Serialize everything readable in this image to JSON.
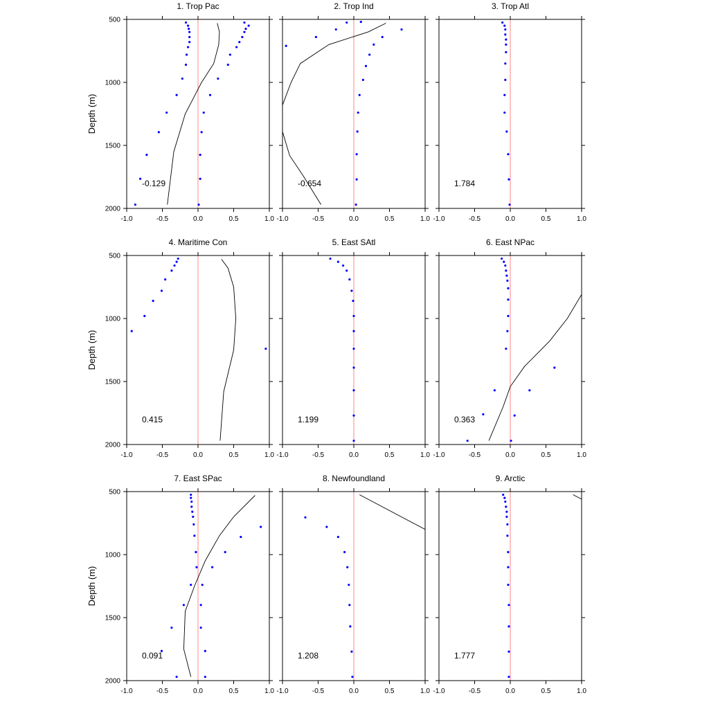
{
  "chart_data": {
    "type": "scatter",
    "shared": {
      "ylabel": "Depth (m)",
      "xlim": [
        -1.0,
        1.0
      ],
      "ylim": [
        500,
        2000
      ],
      "y_inverted": true,
      "xticks": [
        "-1.0",
        "-0.5",
        "0.0",
        "0.5",
        "1.0"
      ],
      "yticks": [
        "500",
        "1000",
        "1500",
        "2000"
      ],
      "zero_line_color": "#ff9999",
      "dot_color": "#0000ff",
      "line_color": "#000000",
      "grid": false
    },
    "panels": [
      {
        "title": "1. Trop Pac",
        "value_label": "-0.129",
        "series": [
          {
            "type": "scatter",
            "points": [
              [
                -0.17,
                525
              ],
              [
                -0.14,
                550
              ],
              [
                -0.13,
                575
              ],
              [
                -0.12,
                600
              ],
              [
                -0.12,
                640
              ],
              [
                -0.12,
                680
              ],
              [
                -0.14,
                720
              ],
              [
                -0.16,
                780
              ],
              [
                -0.17,
                860
              ],
              [
                -0.22,
                970
              ],
              [
                -0.3,
                1100
              ],
              [
                -0.44,
                1240
              ],
              [
                -0.55,
                1395
              ],
              [
                -0.72,
                1575
              ],
              [
                -0.81,
                1765
              ],
              [
                -0.88,
                1970
              ]
            ]
          },
          {
            "type": "scatter",
            "points": [
              [
                0.65,
                525
              ],
              [
                0.71,
                550
              ],
              [
                0.67,
                575
              ],
              [
                0.65,
                600
              ],
              [
                0.62,
                640
              ],
              [
                0.58,
                680
              ],
              [
                0.54,
                720
              ],
              [
                0.45,
                780
              ],
              [
                0.42,
                860
              ],
              [
                0.28,
                970
              ],
              [
                0.17,
                1100
              ],
              [
                0.08,
                1240
              ],
              [
                0.05,
                1395
              ],
              [
                0.03,
                1575
              ],
              [
                0.03,
                1765
              ],
              [
                0.01,
                1970
              ]
            ]
          },
          {
            "type": "line",
            "points": [
              [
                0.27,
                530
              ],
              [
                0.3,
                600
              ],
              [
                0.29,
                700
              ],
              [
                0.22,
                850
              ],
              [
                0.05,
                1000
              ],
              [
                -0.18,
                1250
              ],
              [
                -0.34,
                1550
              ],
              [
                -0.43,
                1970
              ]
            ]
          }
        ]
      },
      {
        "title": "2. Trop Ind",
        "value_label": "-0.654",
        "series": [
          {
            "type": "scatter",
            "points": [
              [
                -0.1,
                525
              ],
              [
                -0.25,
                580
              ],
              [
                -0.53,
                640
              ],
              [
                -0.95,
                710
              ],
              [
                0.1,
                520
              ],
              [
                0.67,
                580
              ],
              [
                0.4,
                640
              ],
              [
                0.28,
                700
              ],
              [
                0.22,
                780
              ],
              [
                0.17,
                870
              ],
              [
                0.13,
                980
              ],
              [
                0.08,
                1100
              ],
              [
                0.06,
                1240
              ],
              [
                0.05,
                1390
              ],
              [
                0.04,
                1570
              ],
              [
                0.04,
                1770
              ],
              [
                0.03,
                1970
              ]
            ]
          },
          {
            "type": "line",
            "points": [
              [
                0.45,
                530
              ],
              [
                0.2,
                600
              ],
              [
                -0.35,
                700
              ],
              [
                -0.75,
                850
              ],
              [
                -0.88,
                1000
              ],
              [
                -1.0,
                1180
              ]
            ]
          },
          {
            "type": "line",
            "points": [
              [
                -1.0,
                1390
              ],
              [
                -0.9,
                1580
              ],
              [
                -0.7,
                1750
              ],
              [
                -0.46,
                1970
              ]
            ]
          }
        ]
      },
      {
        "title": "3. Trop Atl",
        "value_label": "1.784",
        "series": [
          {
            "type": "scatter",
            "points": [
              [
                -0.11,
                525
              ],
              [
                -0.08,
                550
              ],
              [
                -0.07,
                580
              ],
              [
                -0.07,
                620
              ],
              [
                -0.06,
                660
              ],
              [
                -0.06,
                700
              ],
              [
                -0.06,
                760
              ],
              [
                -0.07,
                850
              ],
              [
                -0.07,
                980
              ],
              [
                -0.08,
                1100
              ],
              [
                -0.08,
                1240
              ],
              [
                -0.05,
                1390
              ],
              [
                -0.03,
                1570
              ],
              [
                -0.02,
                1770
              ],
              [
                -0.01,
                1970
              ]
            ]
          }
        ]
      },
      {
        "title": "4. Maritime Con",
        "value_label": "0.415",
        "series": [
          {
            "type": "scatter",
            "points": [
              [
                -0.28,
                525
              ],
              [
                -0.3,
                550
              ],
              [
                -0.33,
                580
              ],
              [
                -0.37,
                620
              ],
              [
                -0.46,
                690
              ],
              [
                -0.51,
                780
              ],
              [
                -0.63,
                860
              ],
              [
                -0.75,
                980
              ],
              [
                -0.93,
                1100
              ],
              [
                0.95,
                1240
              ]
            ]
          },
          {
            "type": "line",
            "points": [
              [
                0.33,
                530
              ],
              [
                0.42,
                600
              ],
              [
                0.5,
                750
              ],
              [
                0.53,
                1000
              ],
              [
                0.5,
                1250
              ],
              [
                0.36,
                1580
              ],
              [
                0.31,
                1970
              ]
            ]
          }
        ]
      },
      {
        "title": "5. East SAtl",
        "value_label": "1.199",
        "series": [
          {
            "type": "scatter",
            "points": [
              [
                -0.33,
                525
              ],
              [
                -0.22,
                550
              ],
              [
                -0.15,
                580
              ],
              [
                -0.1,
                620
              ],
              [
                -0.06,
                690
              ],
              [
                -0.03,
                780
              ],
              [
                -0.01,
                860
              ],
              [
                0.0,
                980
              ],
              [
                0.0,
                1100
              ],
              [
                0.0,
                1240
              ],
              [
                0.0,
                1390
              ],
              [
                0.0,
                1570
              ],
              [
                0.0,
                1770
              ],
              [
                0.0,
                1970
              ]
            ]
          }
        ]
      },
      {
        "title": "6. East NPac",
        "value_label": "0.363",
        "series": [
          {
            "type": "scatter",
            "points": [
              [
                -0.12,
                525
              ],
              [
                -0.09,
                550
              ],
              [
                -0.07,
                580
              ],
              [
                -0.06,
                620
              ],
              [
                -0.05,
                660
              ],
              [
                -0.04,
                700
              ],
              [
                -0.03,
                760
              ],
              [
                -0.03,
                850
              ],
              [
                -0.03,
                980
              ],
              [
                -0.04,
                1100
              ],
              [
                -0.06,
                1240
              ],
              [
                0.62,
                1390
              ],
              [
                0.27,
                1570
              ],
              [
                0.06,
                1770
              ],
              [
                0.01,
                1970
              ],
              [
                -0.22,
                1570
              ],
              [
                -0.38,
                1760
              ],
              [
                -0.6,
                1970
              ]
            ]
          },
          {
            "type": "line",
            "points": [
              [
                1.0,
                810
              ],
              [
                0.8,
                1000
              ],
              [
                0.55,
                1180
              ],
              [
                0.2,
                1380
              ],
              [
                0.0,
                1540
              ],
              [
                -0.1,
                1700
              ],
              [
                -0.3,
                1970
              ]
            ]
          }
        ]
      },
      {
        "title": "7. East SPac",
        "value_label": "0.091",
        "series": [
          {
            "type": "scatter",
            "points": [
              [
                -0.1,
                525
              ],
              [
                -0.1,
                550
              ],
              [
                -0.09,
                580
              ],
              [
                -0.09,
                620
              ],
              [
                -0.08,
                660
              ],
              [
                -0.07,
                700
              ],
              [
                -0.06,
                760
              ],
              [
                -0.05,
                850
              ],
              [
                -0.03,
                980
              ],
              [
                -0.02,
                1100
              ],
              [
                -0.1,
                1240
              ],
              [
                -0.2,
                1400
              ],
              [
                -0.37,
                1580
              ],
              [
                -0.51,
                1765
              ],
              [
                -0.3,
                1970
              ],
              [
                0.88,
                780
              ],
              [
                0.6,
                860
              ],
              [
                0.38,
                980
              ],
              [
                0.2,
                1100
              ],
              [
                0.06,
                1240
              ],
              [
                0.04,
                1400
              ],
              [
                0.04,
                1580
              ],
              [
                0.1,
                1765
              ],
              [
                0.1,
                1970
              ]
            ]
          },
          {
            "type": "line",
            "points": [
              [
                0.8,
                530
              ],
              [
                0.5,
                700
              ],
              [
                0.3,
                850
              ],
              [
                0.1,
                1050
              ],
              [
                -0.05,
                1250
              ],
              [
                -0.18,
                1450
              ],
              [
                -0.2,
                1750
              ],
              [
                -0.1,
                1970
              ]
            ]
          }
        ]
      },
      {
        "title": "8. Newfoundland",
        "value_label": "1.208",
        "series": [
          {
            "type": "scatter",
            "points": [
              [
                -0.68,
                705
              ],
              [
                -0.38,
                780
              ],
              [
                -0.22,
                860
              ],
              [
                -0.13,
                980
              ],
              [
                -0.09,
                1100
              ],
              [
                -0.07,
                1240
              ],
              [
                -0.06,
                1400
              ],
              [
                -0.05,
                1570
              ],
              [
                -0.03,
                1770
              ],
              [
                -0.02,
                1970
              ]
            ]
          },
          {
            "type": "line",
            "points": [
              [
                0.08,
                525
              ],
              [
                1.0,
                800
              ]
            ]
          }
        ]
      },
      {
        "title": "9. Arctic",
        "value_label": "1.777",
        "series": [
          {
            "type": "scatter",
            "points": [
              [
                -0.1,
                525
              ],
              [
                -0.08,
                550
              ],
              [
                -0.07,
                580
              ],
              [
                -0.06,
                620
              ],
              [
                -0.05,
                660
              ],
              [
                -0.05,
                700
              ],
              [
                -0.04,
                760
              ],
              [
                -0.04,
                850
              ],
              [
                -0.03,
                980
              ],
              [
                -0.03,
                1100
              ],
              [
                -0.03,
                1240
              ],
              [
                -0.02,
                1400
              ],
              [
                -0.02,
                1570
              ],
              [
                -0.02,
                1770
              ],
              [
                -0.02,
                1970
              ]
            ]
          },
          {
            "type": "line",
            "points": [
              [
                0.88,
                525
              ],
              [
                1.0,
                560
              ]
            ]
          }
        ]
      }
    ]
  }
}
